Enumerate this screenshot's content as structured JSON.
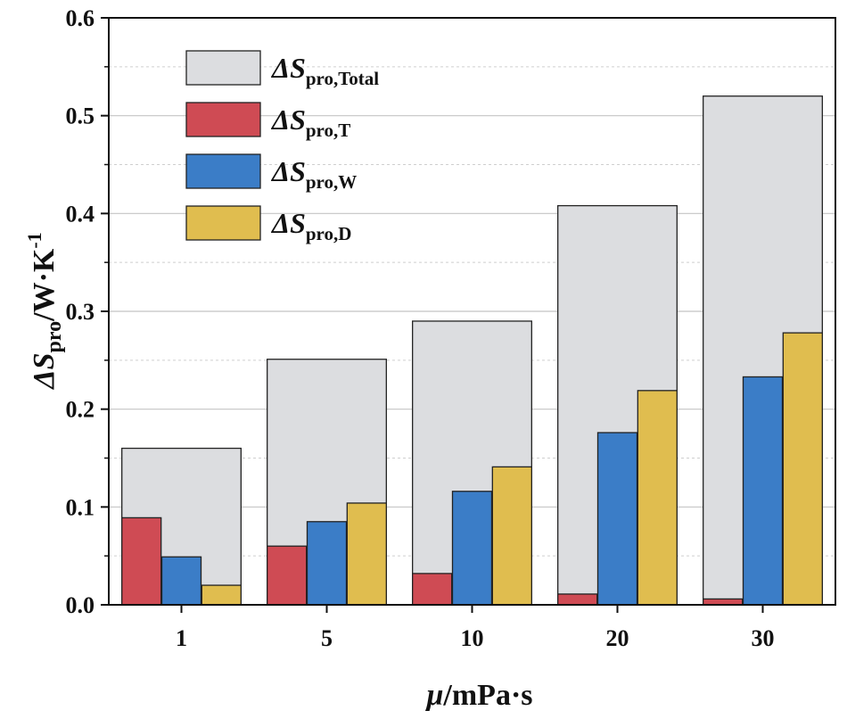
{
  "chart_data": {
    "type": "bar",
    "title": "",
    "categories": [
      "1",
      "5",
      "10",
      "20",
      "30"
    ],
    "total": {
      "name": "ΔSpro,Total",
      "symbol": "ΔS",
      "subscript": "pro,Total",
      "color": "#dcdde0",
      "values": [
        0.16,
        0.251,
        0.29,
        0.408,
        0.52
      ]
    },
    "series": [
      {
        "name": "ΔSpro,T",
        "symbol": "ΔS",
        "subscript": "pro,T",
        "color": "#cf4b54",
        "values": [
          0.089,
          0.06,
          0.032,
          0.011,
          0.006
        ]
      },
      {
        "name": "ΔSpro,W",
        "symbol": "ΔS",
        "subscript": "pro,W",
        "color": "#3b7dc7",
        "values": [
          0.049,
          0.085,
          0.116,
          0.176,
          0.233
        ]
      },
      {
        "name": "ΔSpro,D",
        "symbol": "ΔS",
        "subscript": "pro,D",
        "color": "#e0bd4f",
        "values": [
          0.02,
          0.104,
          0.141,
          0.219,
          0.278
        ]
      }
    ],
    "xlabel": {
      "symbol": "μ",
      "rest": "/mPa·s"
    },
    "ylabel": {
      "symbol": "ΔS",
      "sub": "pro",
      "rest": "/W·K",
      "sup": "-1"
    },
    "ylim": [
      0,
      0.6
    ],
    "yticks": [
      "0.0",
      "0.1",
      "0.2",
      "0.3",
      "0.4",
      "0.5",
      "0.6"
    ],
    "grid": true,
    "legend_position": "top-left"
  }
}
